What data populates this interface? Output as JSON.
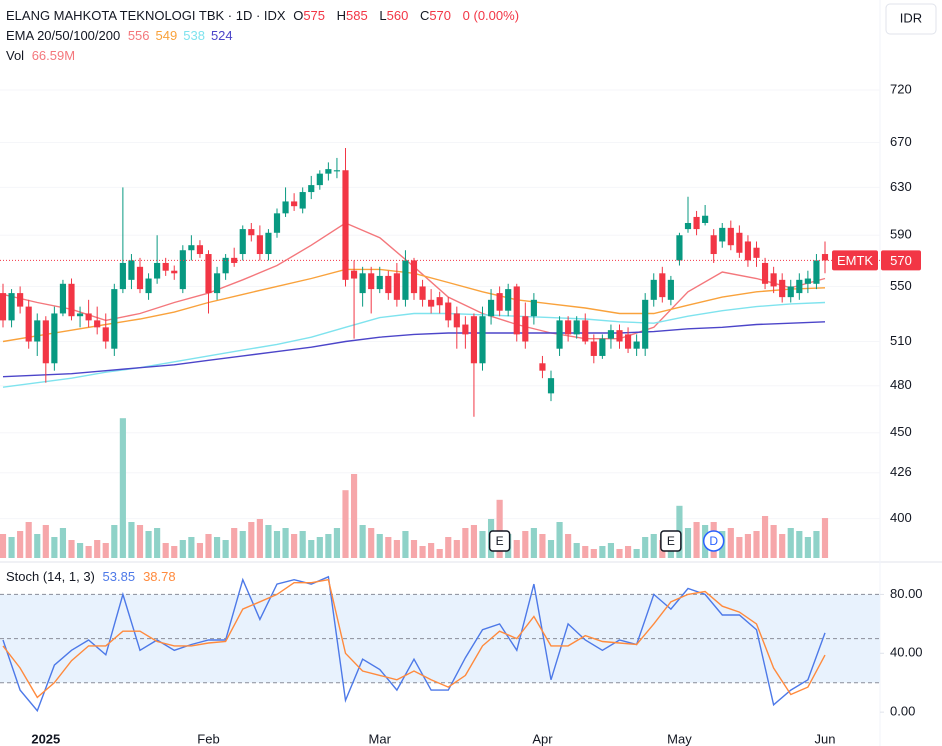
{
  "chart_data": {
    "type": "candlestick",
    "title": "ELANG MAHKOTA TEKNOLOGI TBK · 1D · IDX",
    "ohlc_labels": [
      "O",
      "H",
      "L",
      "C"
    ],
    "change": "0 (0.00%)",
    "currency": "IDR",
    "ticker": "EMTK",
    "log_scale": true,
    "ylim": [
      379,
      735
    ],
    "yticks": [
      720,
      670,
      630,
      590,
      550,
      510,
      480,
      450,
      426,
      400
    ],
    "up_color": "#089981",
    "down_color": "#f23645",
    "volume_up_color": "#8fd2c8",
    "volume_down_color": "#f6a7aa",
    "categories": [
      null,
      null,
      null,
      null,
      null,
      "2025",
      null,
      null,
      null,
      null,
      null,
      null,
      null,
      null,
      null,
      null,
      null,
      null,
      null,
      null,
      null,
      null,
      null,
      null,
      "Feb",
      null,
      null,
      null,
      null,
      null,
      null,
      null,
      null,
      null,
      null,
      null,
      null,
      null,
      null,
      null,
      null,
      null,
      null,
      null,
      "Mar",
      null,
      null,
      null,
      null,
      null,
      null,
      null,
      null,
      null,
      null,
      null,
      null,
      null,
      null,
      null,
      null,
      null,
      null,
      "Apr",
      null,
      null,
      null,
      null,
      null,
      null,
      null,
      null,
      null,
      null,
      null,
      null,
      null,
      null,
      null,
      "May",
      null,
      null,
      null,
      null,
      null,
      null,
      null,
      null,
      null,
      null,
      null,
      null,
      null,
      null,
      null,
      null,
      "Jun"
    ],
    "ohlc": [
      [
        545,
        552,
        520,
        525
      ],
      [
        525,
        548,
        520,
        545
      ],
      [
        545,
        550,
        530,
        535
      ],
      [
        535,
        540,
        505,
        510
      ],
      [
        510,
        530,
        500,
        525
      ],
      [
        525,
        528,
        482,
        495
      ],
      [
        495,
        535,
        490,
        530
      ],
      [
        530,
        555,
        528,
        552
      ],
      [
        552,
        556,
        525,
        528
      ],
      [
        528,
        535,
        520,
        530
      ],
      [
        530,
        540,
        520,
        525
      ],
      [
        525,
        535,
        515,
        520
      ],
      [
        520,
        530,
        505,
        510
      ],
      [
        505,
        552,
        500,
        548
      ],
      [
        548,
        630,
        545,
        568
      ],
      [
        555,
        575,
        548,
        570
      ],
      [
        565,
        572,
        545,
        548
      ],
      [
        545,
        560,
        540,
        556
      ],
      [
        556,
        590,
        552,
        568
      ],
      [
        568,
        572,
        558,
        562
      ],
      [
        562,
        566,
        555,
        560
      ],
      [
        548,
        582,
        545,
        578
      ],
      [
        578,
        590,
        570,
        582
      ],
      [
        582,
        586,
        572,
        575
      ],
      [
        575,
        578,
        530,
        545
      ],
      [
        545,
        565,
        540,
        560
      ],
      [
        560,
        575,
        555,
        572
      ],
      [
        572,
        580,
        565,
        568
      ],
      [
        575,
        598,
        570,
        595
      ],
      [
        595,
        600,
        585,
        590
      ],
      [
        590,
        598,
        570,
        575
      ],
      [
        575,
        595,
        570,
        592
      ],
      [
        592,
        612,
        588,
        608
      ],
      [
        608,
        630,
        605,
        618
      ],
      [
        618,
        625,
        610,
        614
      ],
      [
        612,
        630,
        608,
        626
      ],
      [
        626,
        640,
        620,
        632
      ],
      [
        632,
        645,
        628,
        642
      ],
      [
        642,
        652,
        636,
        646
      ],
      [
        644,
        656,
        638,
        645
      ],
      [
        645,
        665,
        550,
        555
      ],
      [
        562,
        570,
        512,
        556
      ],
      [
        545,
        565,
        535,
        560
      ],
      [
        560,
        565,
        530,
        548
      ],
      [
        548,
        565,
        545,
        558
      ],
      [
        558,
        562,
        540,
        545
      ],
      [
        560,
        568,
        535,
        540
      ],
      [
        540,
        578,
        535,
        570
      ],
      [
        570,
        572,
        540,
        545
      ],
      [
        550,
        555,
        535,
        540
      ],
      [
        540,
        548,
        530,
        535
      ],
      [
        542,
        546,
        530,
        536
      ],
      [
        538,
        542,
        520,
        525
      ],
      [
        530,
        535,
        505,
        520
      ],
      [
        522,
        528,
        505,
        515
      ],
      [
        528,
        530,
        460,
        495
      ],
      [
        495,
        535,
        490,
        528
      ],
      [
        528,
        548,
        522,
        540
      ],
      [
        545,
        550,
        528,
        532
      ],
      [
        532,
        552,
        528,
        548
      ],
      [
        550,
        552,
        510,
        515
      ],
      [
        528,
        538,
        505,
        510
      ],
      [
        528,
        545,
        522,
        540
      ],
      [
        495,
        500,
        485,
        490
      ],
      [
        475,
        490,
        470,
        485
      ],
      [
        505,
        528,
        500,
        525
      ],
      [
        525,
        528,
        510,
        515
      ],
      [
        515,
        528,
        512,
        525
      ],
      [
        525,
        530,
        508,
        510
      ],
      [
        510,
        515,
        495,
        500
      ],
      [
        500,
        515,
        498,
        512
      ],
      [
        512,
        522,
        505,
        518
      ],
      [
        518,
        522,
        505,
        510
      ],
      [
        515,
        520,
        502,
        505
      ],
      [
        505,
        515,
        500,
        510
      ],
      [
        505,
        545,
        500,
        540
      ],
      [
        540,
        560,
        535,
        555
      ],
      [
        560,
        565,
        538,
        542
      ],
      [
        540,
        558,
        536,
        555
      ],
      [
        570,
        592,
        566,
        590
      ],
      [
        595,
        622,
        592,
        600
      ],
      [
        605,
        610,
        590,
        595
      ],
      [
        600,
        615,
        598,
        606
      ],
      [
        590,
        595,
        568,
        575
      ],
      [
        585,
        600,
        580,
        596
      ],
      [
        596,
        602,
        578,
        582
      ],
      [
        592,
        598,
        572,
        576
      ],
      [
        585,
        590,
        565,
        570
      ],
      [
        580,
        585,
        565,
        572
      ],
      [
        568,
        572,
        548,
        552
      ],
      [
        560,
        565,
        545,
        550
      ],
      [
        555,
        560,
        538,
        542
      ],
      [
        542,
        555,
        538,
        550
      ],
      [
        545,
        560,
        540,
        555
      ],
      [
        552,
        562,
        545,
        556
      ],
      [
        552,
        575,
        548,
        570
      ],
      [
        575,
        585,
        560,
        570
      ]
    ],
    "volume_label": "Vol",
    "volume_value_label": "66.59M",
    "volume_ylim": [
      0,
      805
    ],
    "volume": [
      40,
      35,
      45,
      60,
      40,
      55,
      35,
      50,
      30,
      25,
      20,
      30,
      25,
      55,
      233,
      60,
      55,
      45,
      50,
      25,
      20,
      30,
      35,
      25,
      40,
      35,
      30,
      50,
      45,
      60,
      65,
      55,
      45,
      50,
      40,
      45,
      30,
      35,
      40,
      50,
      113,
      140,
      55,
      50,
      40,
      35,
      30,
      45,
      30,
      20,
      25,
      15,
      35,
      30,
      50,
      55,
      45,
      65,
      97,
      40,
      30,
      45,
      50,
      40,
      30,
      60,
      40,
      25,
      20,
      15,
      20,
      25,
      15,
      20,
      15,
      35,
      40,
      30,
      45,
      87,
      50,
      60,
      55,
      60,
      45,
      50,
      35,
      40,
      45,
      70,
      55,
      40,
      50,
      45,
      35,
      45,
      66.59
    ],
    "ema": {
      "name": "EMA 20/50/100/200",
      "series": [
        {
          "color": "#f4777c",
          "x": [
            0,
            4,
            8,
            12,
            16,
            20,
            24,
            28,
            32,
            36,
            40,
            44,
            48,
            52,
            56,
            60,
            64,
            68,
            72,
            76,
            80,
            84,
            88,
            92,
            96
          ],
          "values": [
            544,
            538,
            533,
            525,
            530,
            538,
            545,
            555,
            566,
            582,
            600,
            588,
            565,
            542,
            530,
            522,
            516,
            512,
            512,
            520,
            546,
            561,
            556,
            549,
            556
          ]
        },
        {
          "color": "#f9a23c",
          "x": [
            0,
            4,
            8,
            12,
            16,
            20,
            24,
            28,
            32,
            36,
            40,
            44,
            48,
            52,
            56,
            60,
            64,
            68,
            72,
            76,
            80,
            84,
            88,
            92,
            96
          ],
          "values": [
            510,
            514,
            518,
            522,
            526,
            531,
            538,
            544,
            550,
            556,
            563,
            563,
            560,
            553,
            546,
            540,
            537,
            534,
            530,
            530,
            536,
            542,
            546,
            548,
            549
          ]
        },
        {
          "color": "#7fe3ee",
          "x": [
            0,
            4,
            8,
            12,
            16,
            20,
            24,
            28,
            32,
            36,
            40,
            44,
            48,
            52,
            56,
            60,
            64,
            68,
            72,
            76,
            80,
            84,
            88,
            92,
            96
          ],
          "values": [
            479,
            482,
            485,
            489,
            492,
            496,
            500,
            504,
            508,
            513,
            520,
            527,
            530,
            530,
            529,
            528,
            527,
            526,
            524,
            523,
            528,
            532,
            535,
            537,
            538
          ]
        },
        {
          "color": "#4c45c9",
          "x": [
            0,
            4,
            8,
            12,
            16,
            20,
            24,
            28,
            32,
            36,
            40,
            44,
            48,
            52,
            56,
            60,
            64,
            68,
            72,
            76,
            80,
            84,
            88,
            92,
            96
          ],
          "values": [
            486,
            487,
            488,
            490,
            492,
            494,
            497,
            500,
            503,
            506,
            510,
            513,
            515,
            516,
            516,
            516,
            516,
            516,
            516,
            517,
            519,
            520,
            522,
            523,
            524
          ]
        }
      ]
    },
    "events": [
      {
        "x": 58,
        "label": "E",
        "color": "#131722"
      },
      {
        "x": 78,
        "label": "E",
        "color": "#131722"
      },
      {
        "x": 83,
        "label": "D",
        "color": "#2962ff"
      }
    ],
    "stoch": {
      "name": "Stoch (14, 1, 3)",
      "ylim": [
        -23,
        100
      ],
      "yticks": [
        {
          "value": 80,
          "label": "80.00"
        },
        {
          "value": 40,
          "label": "40.00"
        },
        {
          "value": 0,
          "label": "0.00"
        }
      ],
      "levels": [
        80,
        50,
        20
      ],
      "band": [
        20,
        80
      ],
      "series": [
        {
          "color": "#4d79e8",
          "x": [
            0,
            2,
            4,
            6,
            8,
            10,
            12,
            14,
            16,
            18,
            20,
            22,
            24,
            26,
            28,
            30,
            32,
            34,
            36,
            38,
            40,
            42,
            44,
            46,
            48,
            50,
            52,
            54,
            56,
            58,
            60,
            62,
            64,
            66,
            68,
            70,
            72,
            74,
            76,
            78,
            80,
            82,
            84,
            86,
            88,
            90,
            92,
            94,
            96
          ],
          "values": [
            49,
            15,
            1,
            32,
            42,
            49,
            39,
            80,
            42,
            49,
            42,
            46,
            49,
            49,
            90,
            63,
            87,
            90,
            87,
            92,
            8,
            36,
            29,
            15,
            36,
            15,
            15,
            37,
            56,
            60,
            42,
            87,
            22,
            60,
            49,
            42,
            49,
            46,
            80,
            70,
            84,
            80,
            66,
            66,
            56,
            5,
            15,
            22,
            53.85
          ]
        },
        {
          "color": "#ff8a3d",
          "x": [
            0,
            2,
            4,
            6,
            8,
            10,
            12,
            14,
            16,
            18,
            20,
            22,
            24,
            26,
            28,
            30,
            32,
            34,
            36,
            38,
            40,
            42,
            44,
            46,
            48,
            50,
            52,
            54,
            56,
            58,
            60,
            62,
            64,
            66,
            68,
            70,
            72,
            74,
            76,
            78,
            80,
            82,
            84,
            86,
            88,
            90,
            92,
            94,
            96
          ],
          "values": [
            45,
            30,
            10,
            20,
            35,
            45,
            45,
            55,
            55,
            48,
            45,
            45,
            47,
            48,
            70,
            75,
            80,
            88,
            88,
            90,
            40,
            28,
            25,
            22,
            28,
            22,
            17,
            25,
            45,
            55,
            50,
            65,
            45,
            45,
            52,
            48,
            47,
            46,
            60,
            75,
            80,
            82,
            72,
            68,
            60,
            30,
            12,
            17,
            38.78
          ]
        }
      ]
    }
  }
}
